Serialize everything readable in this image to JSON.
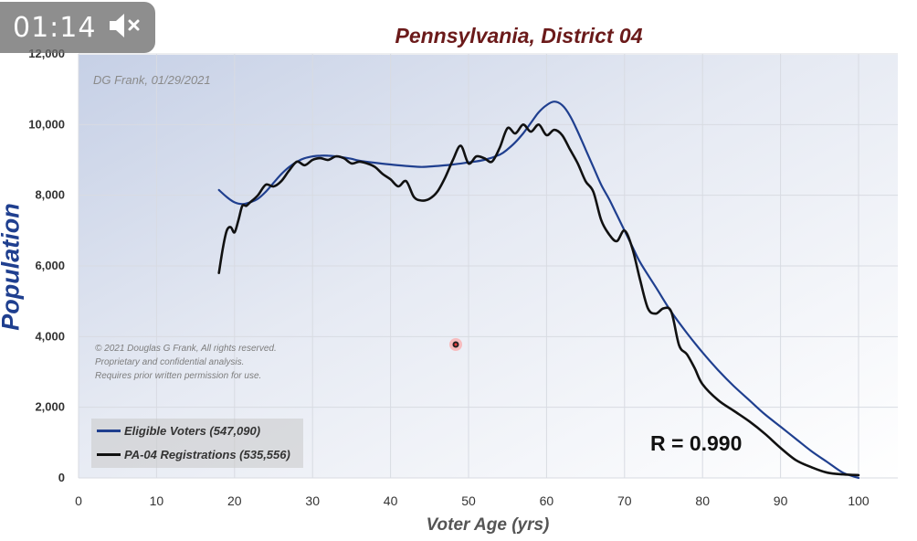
{
  "video": {
    "time": "01:14"
  },
  "watermark": "DG Frank, 01/29/2021",
  "copyright_lines": [
    "© 2021 Douglas G Frank, All rights reserved.",
    "Proprietary and confidential analysis.",
    "Requires prior written permission for use."
  ],
  "r_value": "R = 0.990",
  "chart_data": {
    "type": "line",
    "title": "Pennsylvania, District 04",
    "xlabel": "Voter Age (yrs)",
    "ylabel": "Population",
    "xlim": [
      0,
      100
    ],
    "ylim": [
      0,
      12000
    ],
    "xticks": [
      0,
      10,
      20,
      30,
      40,
      50,
      60,
      70,
      80,
      90,
      100
    ],
    "yticks": [
      0,
      2000,
      4000,
      6000,
      8000,
      10000,
      12000
    ],
    "ytick_labels": [
      "0",
      "2,000",
      "4,000",
      "6,000",
      "8,000",
      "10,000",
      "12,000"
    ],
    "grid": true,
    "legend_position": "bottom-left",
    "colors": {
      "eligible": "#1f3f8f",
      "registrations": "#111111",
      "title": "#6b1a1a"
    },
    "series": [
      {
        "name": "Eligible Voters (547,090)",
        "x": [
          18,
          19,
          20,
          21,
          22,
          23,
          24,
          25,
          26,
          27,
          28,
          29,
          30,
          31,
          32,
          33,
          34,
          35,
          36,
          38,
          40,
          42,
          44,
          46,
          48,
          50,
          52,
          54,
          55,
          56,
          57,
          58,
          59,
          60,
          61,
          62,
          63,
          64,
          65,
          66,
          67,
          68,
          69,
          70,
          71,
          72,
          74,
          76,
          78,
          80,
          82,
          84,
          86,
          88,
          90,
          92,
          94,
          96,
          98,
          100
        ],
        "values": [
          8150,
          7950,
          7800,
          7750,
          7800,
          7900,
          8100,
          8350,
          8600,
          8800,
          8950,
          9050,
          9100,
          9120,
          9120,
          9100,
          9070,
          9030,
          8980,
          8920,
          8870,
          8830,
          8800,
          8830,
          8870,
          8930,
          9000,
          9150,
          9300,
          9500,
          9750,
          10050,
          10350,
          10550,
          10650,
          10550,
          10250,
          9800,
          9300,
          8800,
          8300,
          7900,
          7450,
          7000,
          6550,
          6100,
          5400,
          4700,
          4100,
          3550,
          3050,
          2600,
          2200,
          1800,
          1450,
          1100,
          750,
          450,
          150,
          0
        ]
      },
      {
        "name": "PA-04 Registrations (535,556)",
        "x": [
          18,
          18.5,
          19,
          19.5,
          20,
          20.5,
          21,
          21.5,
          22,
          23,
          24,
          25,
          26,
          27,
          28,
          29,
          30,
          31,
          32,
          33,
          34,
          35,
          36,
          37,
          38,
          39,
          40,
          41,
          42,
          43,
          44,
          45,
          46,
          47,
          48,
          49,
          50,
          51,
          52,
          53,
          54,
          55,
          56,
          57,
          58,
          59,
          60,
          61,
          62,
          63,
          64,
          65,
          66,
          67,
          68,
          69,
          70,
          71,
          72,
          73,
          74,
          75,
          76,
          77,
          78,
          79,
          80,
          82,
          84,
          86,
          88,
          90,
          92,
          94,
          96,
          98,
          100
        ],
        "values": [
          5800,
          6500,
          7000,
          7100,
          6950,
          7300,
          7700,
          7700,
          7800,
          8000,
          8300,
          8250,
          8400,
          8700,
          8950,
          8850,
          9000,
          9050,
          9000,
          9100,
          9050,
          8900,
          8950,
          8900,
          8800,
          8600,
          8450,
          8250,
          8400,
          7950,
          7850,
          7900,
          8100,
          8500,
          9000,
          9400,
          8900,
          9100,
          9050,
          8950,
          9350,
          9900,
          9750,
          10000,
          9800,
          10000,
          9700,
          9850,
          9700,
          9300,
          8900,
          8400,
          8100,
          7300,
          6900,
          6700,
          7000,
          6500,
          5600,
          4800,
          4650,
          4800,
          4700,
          3750,
          3500,
          3100,
          2650,
          2200,
          1900,
          1600,
          1250,
          850,
          500,
          300,
          150,
          100,
          80
        ]
      }
    ]
  }
}
